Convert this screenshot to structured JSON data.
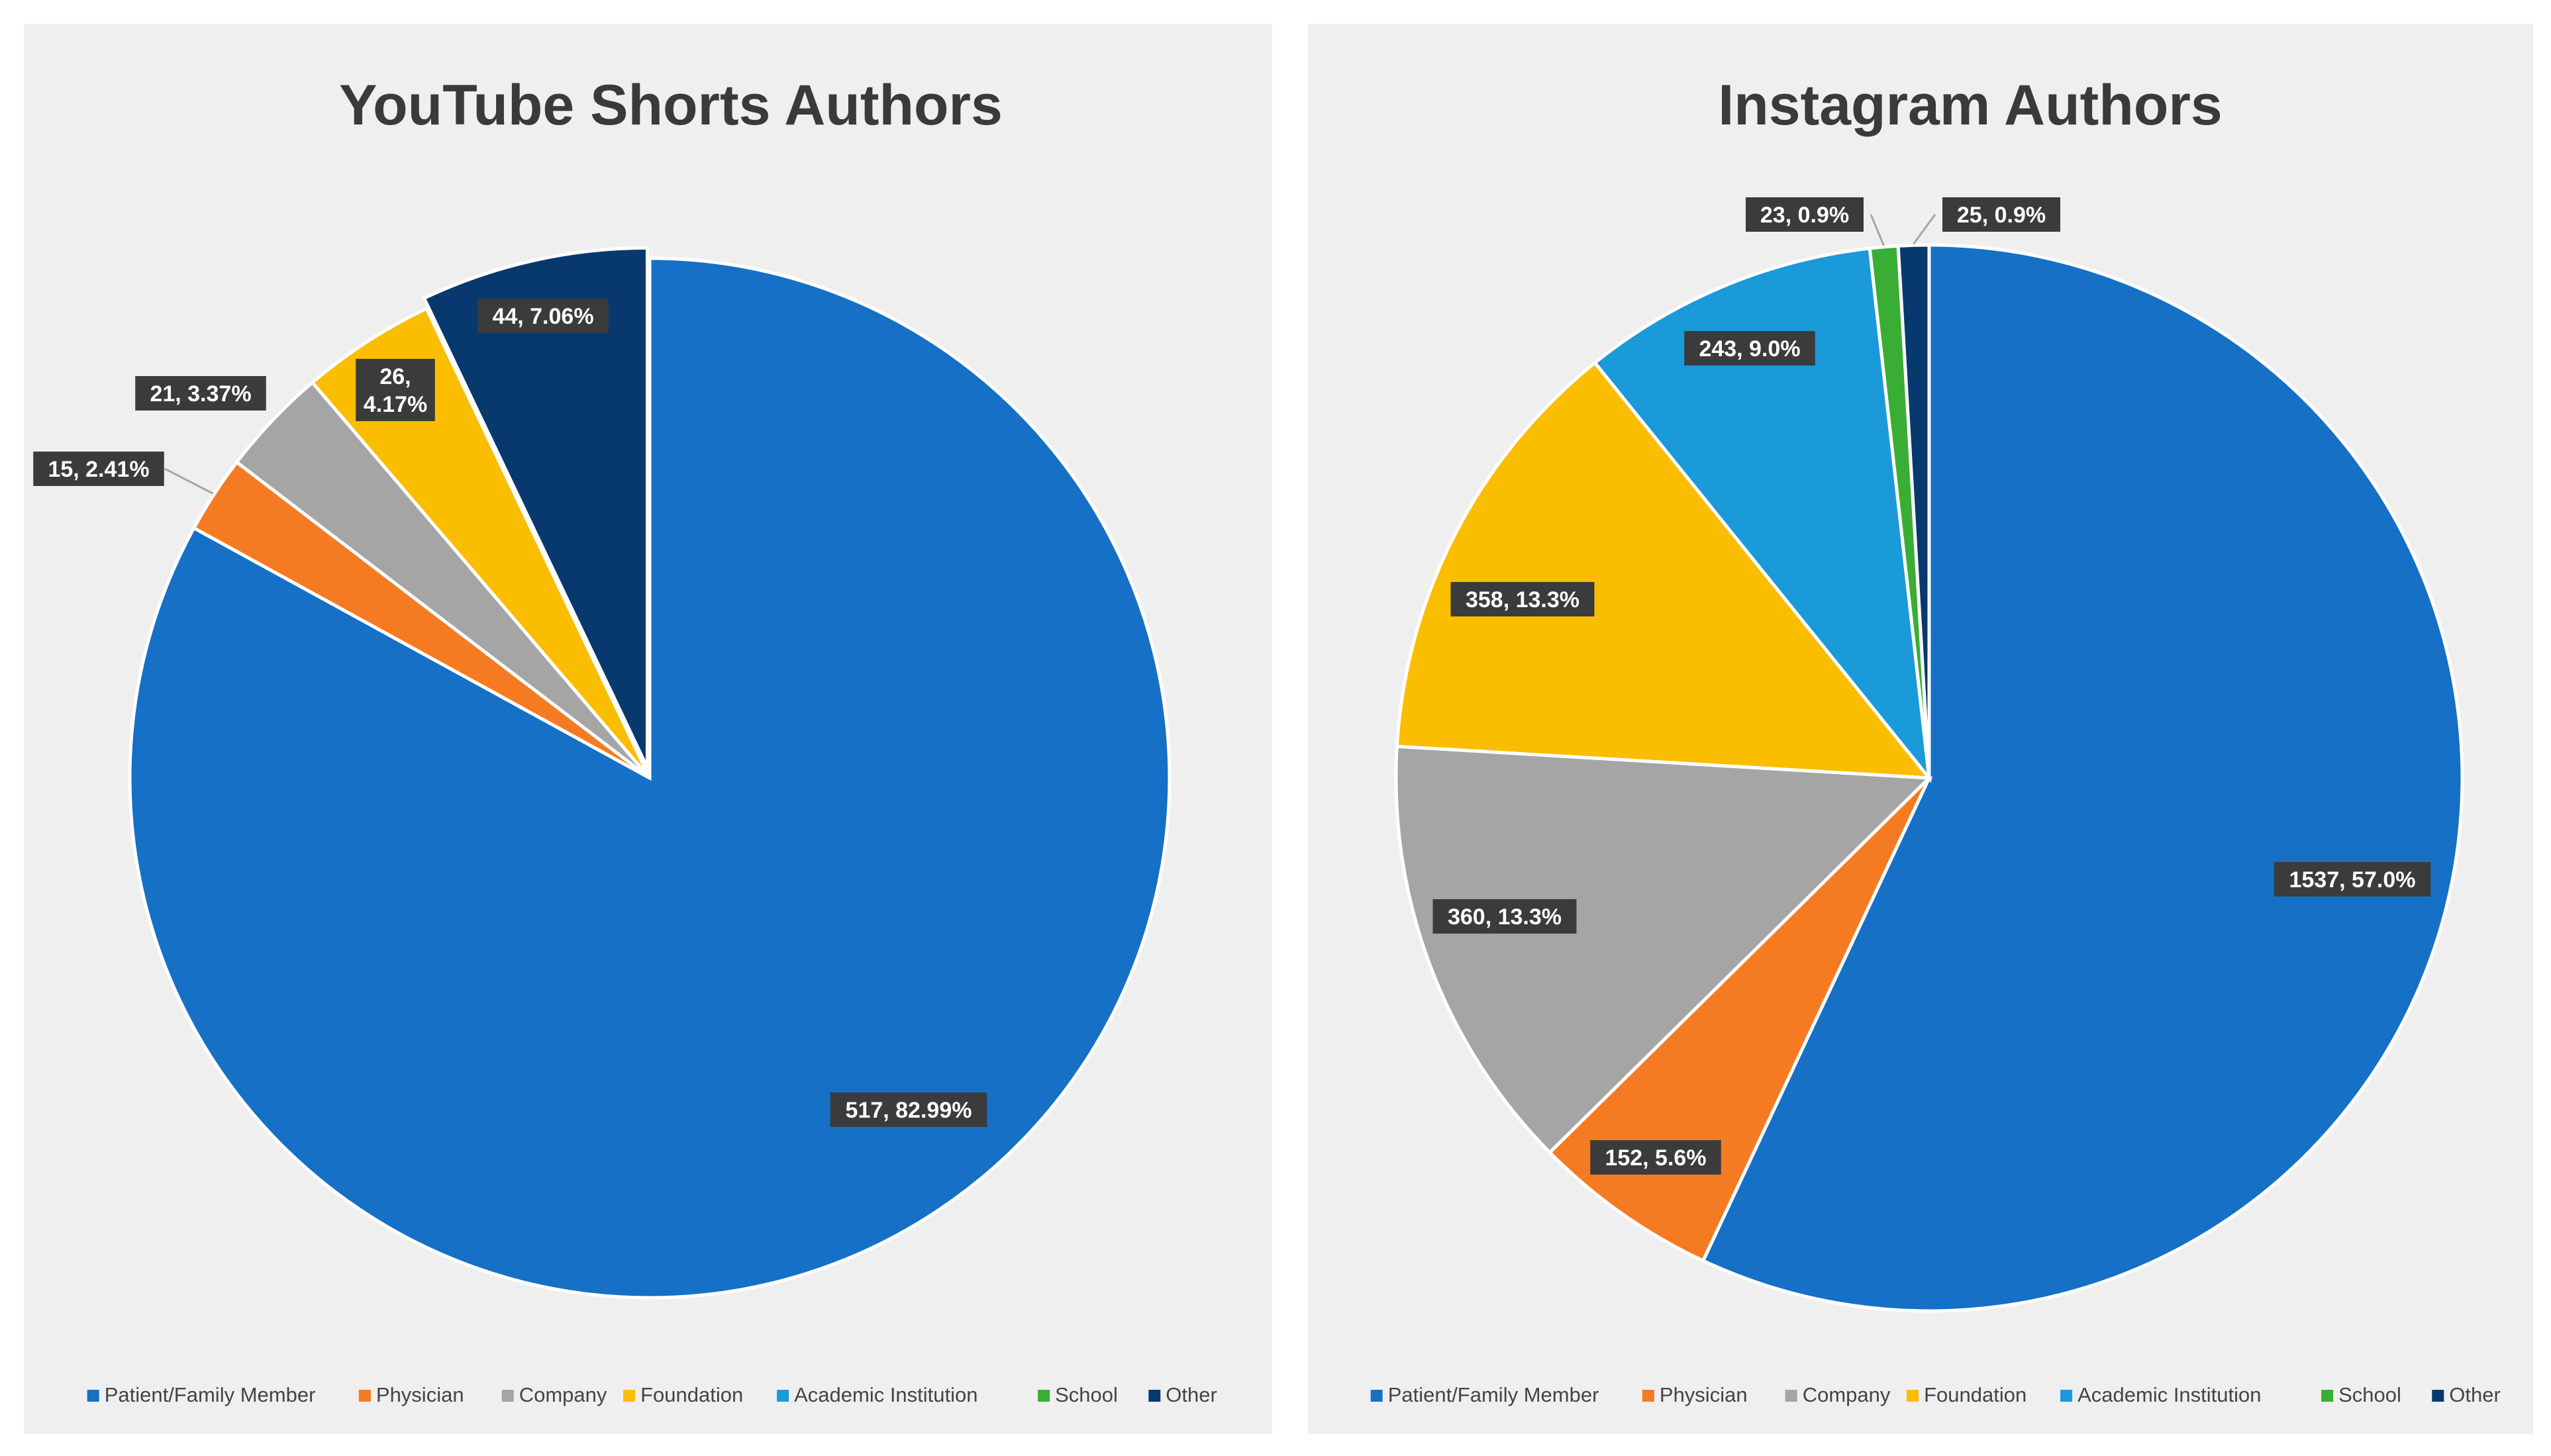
{
  "chart_data": [
    {
      "type": "pie",
      "title": "YouTube Shorts Authors",
      "categories": [
        "Patient/Family Member",
        "Physician",
        "Company",
        "Foundation",
        "Academic Institution",
        "School",
        "Other"
      ],
      "values": [
        517,
        15,
        21,
        26,
        0,
        0,
        44
      ],
      "percent_labels": [
        "82.99%",
        "2.41%",
        "3.37%",
        "4.17%",
        "",
        "",
        "7.06%"
      ],
      "data_labels": [
        "517, 82.99%",
        "15, 2.41%",
        "21, 3.37%",
        "26, 4.17%",
        "",
        "",
        "44, 7.06%"
      ],
      "legend_position": "bottom"
    },
    {
      "type": "pie",
      "title": "Instagram Authors",
      "categories": [
        "Patient/Family Member",
        "Physician",
        "Company",
        "Foundation",
        "Academic Institution",
        "School",
        "Other"
      ],
      "values": [
        1537,
        152,
        360,
        358,
        243,
        23,
        25
      ],
      "percent_labels": [
        "57.0%",
        "5.6%",
        "13.3%",
        "13.3%",
        "9.0%",
        "0.9%",
        "0.9%"
      ],
      "data_labels": [
        "1537, 57.0%",
        "152, 5.6%",
        "360, 13.3%",
        "358, 13.3%",
        "243, 9.0%",
        "23, 0.9%",
        "25, 0.9%"
      ],
      "legend_position": "bottom"
    }
  ],
  "colors": {
    "Patient/Family Member": "#1570c6",
    "Physician": "#f57b23",
    "Company": "#a5a5a5",
    "Foundation": "#fbbd00",
    "Academic Institution": "#1a9ad8",
    "School": "#3aad35",
    "Other": "#08396e"
  }
}
